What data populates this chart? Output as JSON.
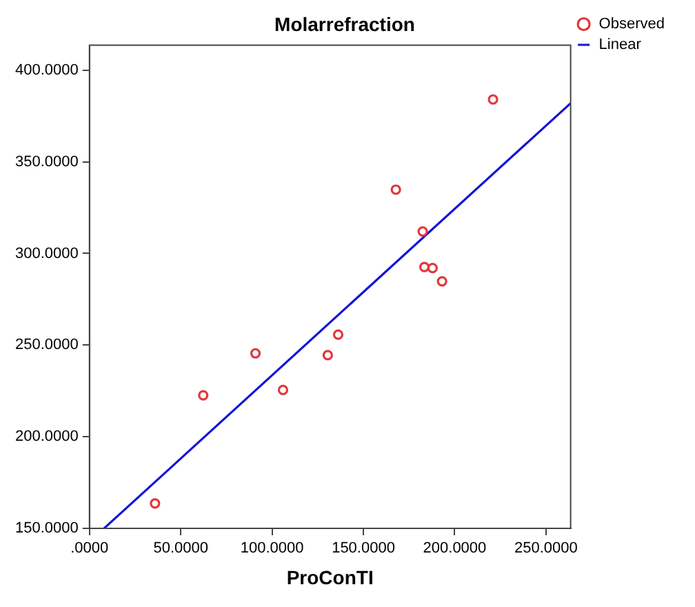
{
  "chart_data": {
    "type": "scatter",
    "title": "Molarrefraction",
    "xlabel": "ProConTI",
    "xlim": [
      0,
      263.5
    ],
    "ylim": [
      150,
      413.6
    ],
    "xticks": [
      {
        "value": 0,
        "label": ".0000"
      },
      {
        "value": 50,
        "label": "50.0000"
      },
      {
        "value": 100,
        "label": "100.0000"
      },
      {
        "value": 150,
        "label": "150.0000"
      },
      {
        "value": 200,
        "label": "200.0000"
      },
      {
        "value": 250,
        "label": "250.0000"
      }
    ],
    "yticks": [
      {
        "value": 150,
        "label": "150.0000"
      },
      {
        "value": 200,
        "label": "200.0000"
      },
      {
        "value": 250,
        "label": "250.0000"
      },
      {
        "value": 300,
        "label": "300.0000"
      },
      {
        "value": 350,
        "label": "350.0000"
      },
      {
        "value": 400,
        "label": "400.0000"
      }
    ],
    "grid": false,
    "legend": "top right",
    "series": [
      {
        "name": "Observed",
        "color": "#e0383c",
        "marker": "circle",
        "x": [
          221,
          167.8,
          182.5,
          183.4,
          187.9,
          193.1,
          136.2,
          130.5,
          90.9,
          106,
          62.3,
          35.9
        ],
        "values": [
          384,
          334.8,
          312,
          292.6,
          292,
          284.8,
          255.7,
          244.5,
          245.5,
          225.5,
          222.6,
          163.6
        ]
      },
      {
        "name": "Linear",
        "type": "line",
        "color": "#1414d8",
        "marker": "none",
        "line_style": "solid",
        "x": [
          8,
          263.5
        ],
        "values": [
          150,
          382
        ]
      }
    ]
  }
}
